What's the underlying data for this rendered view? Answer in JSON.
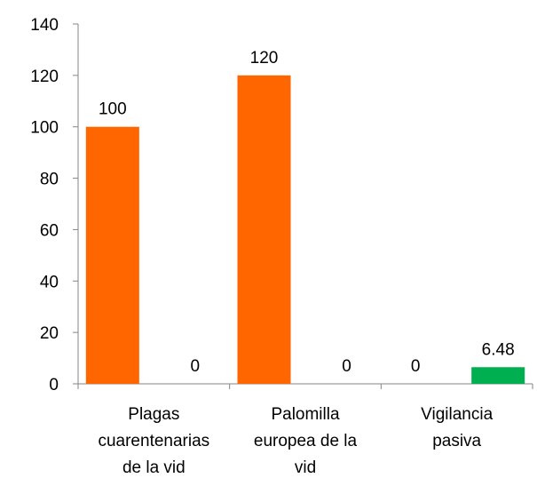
{
  "chart_data": {
    "type": "bar",
    "categories": [
      [
        "Plagas",
        "cuarentenarias",
        "de la vid"
      ],
      [
        "Palomilla",
        "europea de la",
        "vid"
      ],
      [
        "Vigilancia",
        "pasiva"
      ]
    ],
    "series": [
      {
        "values": [
          100,
          120,
          0
        ],
        "color": "#ff6600"
      },
      {
        "values": [
          0,
          0,
          6.48
        ],
        "color": "#00b050"
      }
    ],
    "data_labels": [
      [
        "100",
        "120",
        "0"
      ],
      [
        "0",
        "0",
        "6.48"
      ]
    ],
    "ylim": [
      0,
      140
    ],
    "yticks": [
      0,
      20,
      40,
      60,
      80,
      100,
      120,
      140
    ],
    "grid": false,
    "legend": "none"
  }
}
